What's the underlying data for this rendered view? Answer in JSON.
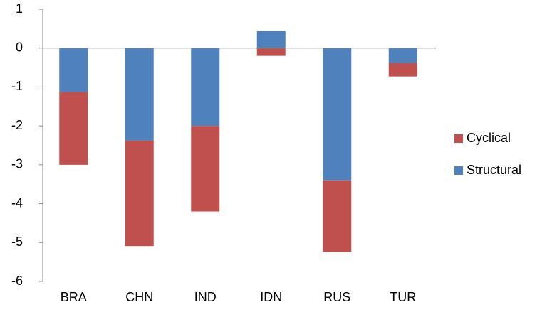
{
  "chart_data": {
    "type": "bar",
    "stacked": true,
    "categories": [
      "BRA",
      "CHN",
      "IND",
      "IDN",
      "RUS",
      "TUR"
    ],
    "series": [
      {
        "name": "Structural",
        "color": "#4f81bd",
        "values": [
          -1.13,
          -2.38,
          -2.0,
          0.44,
          -3.4,
          -0.38
        ]
      },
      {
        "name": "Cyclical",
        "color": "#c0504d",
        "values": [
          -1.87,
          -2.71,
          -2.2,
          -0.2,
          -1.84,
          -0.35
        ]
      }
    ],
    "legend_order": [
      "Cyclical",
      "Structural"
    ],
    "ylim": [
      -6,
      1
    ],
    "yticks": [
      -6,
      -5,
      -4,
      -3,
      -2,
      -1,
      0,
      1
    ],
    "grid": false
  }
}
